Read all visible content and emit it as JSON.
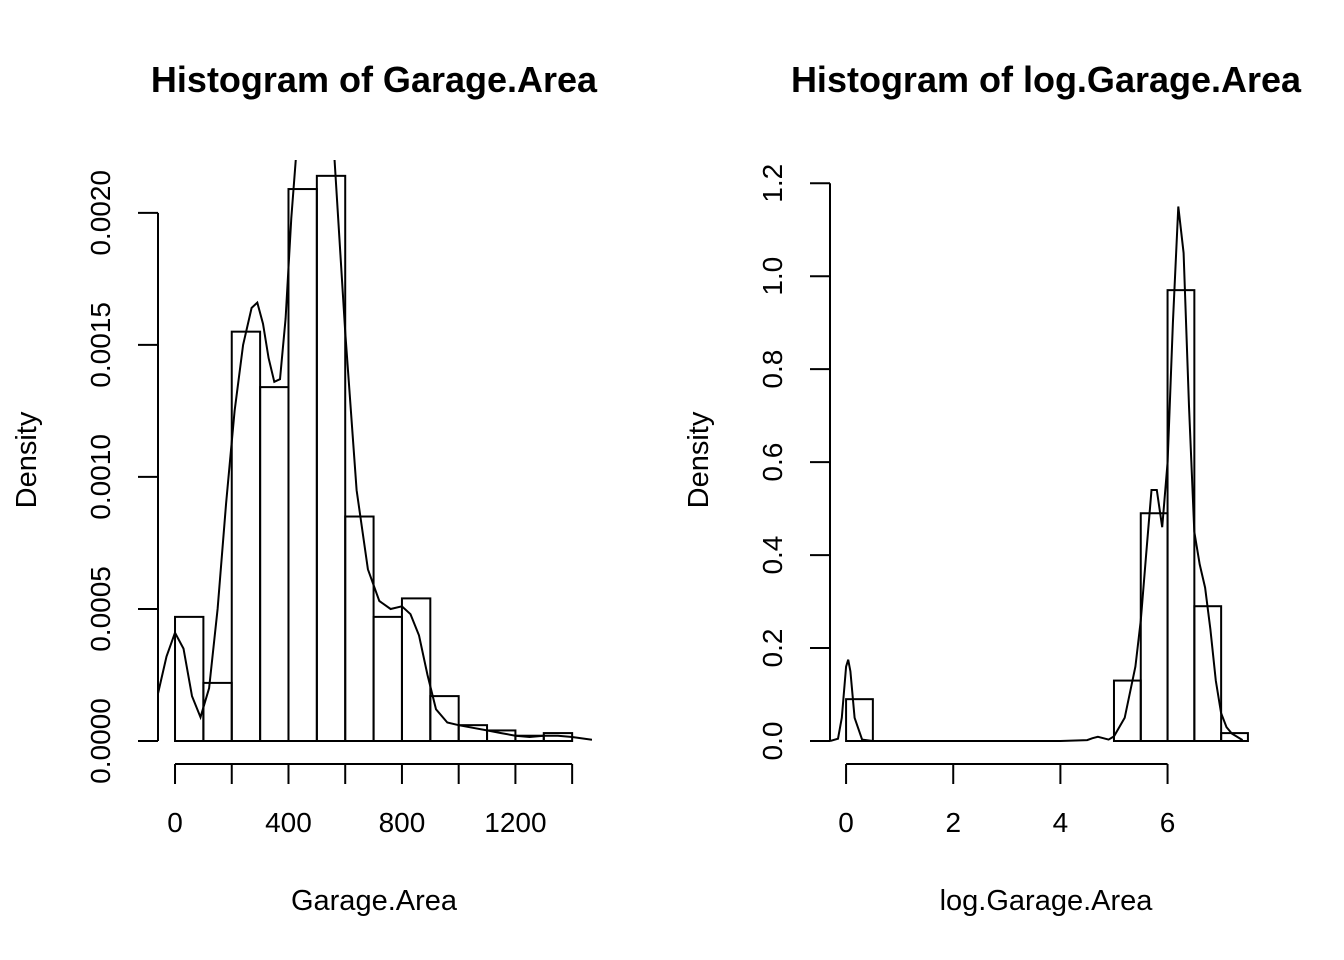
{
  "chart_data": [
    {
      "type": "bar",
      "title": "Histogram of Garage.Area",
      "xlabel": "Garage.Area",
      "ylabel": "Density",
      "xlim": [
        -60,
        1470
      ],
      "ylim": [
        0,
        0.0022
      ],
      "x_ticks": [
        0,
        200,
        400,
        600,
        800,
        1000,
        1200,
        1400
      ],
      "x_tick_labels": [
        "0",
        "",
        "400",
        "",
        "800",
        "",
        "1200",
        ""
      ],
      "y_ticks": [
        0,
        0.0005,
        0.001,
        0.0015,
        0.002
      ],
      "y_tick_labels": [
        "0.0000",
        "0.0005",
        "0.0010",
        "0.0015",
        "0.0020"
      ],
      "bins": [
        {
          "from": 0,
          "to": 100,
          "density": 0.00047
        },
        {
          "from": 100,
          "to": 200,
          "density": 0.00022
        },
        {
          "from": 200,
          "to": 300,
          "density": 0.00155
        },
        {
          "from": 300,
          "to": 400,
          "density": 0.00134
        },
        {
          "from": 400,
          "to": 500,
          "density": 0.00209
        },
        {
          "from": 500,
          "to": 600,
          "density": 0.00214
        },
        {
          "from": 600,
          "to": 700,
          "density": 0.00085
        },
        {
          "from": 700,
          "to": 800,
          "density": 0.00047
        },
        {
          "from": 800,
          "to": 900,
          "density": 0.00054
        },
        {
          "from": 900,
          "to": 1000,
          "density": 0.00017
        },
        {
          "from": 1000,
          "to": 1100,
          "density": 6e-05
        },
        {
          "from": 1100,
          "to": 1200,
          "density": 4e-05
        },
        {
          "from": 1200,
          "to": 1300,
          "density": 2e-05
        },
        {
          "from": 1300,
          "to": 1400,
          "density": 3e-05
        }
      ],
      "density_curve": {
        "x": [
          -60,
          -30,
          0,
          30,
          60,
          90,
          120,
          150,
          180,
          210,
          240,
          270,
          290,
          310,
          330,
          350,
          370,
          390,
          410,
          440,
          470,
          500,
          530,
          560,
          600,
          640,
          680,
          720,
          760,
          800,
          830,
          860,
          890,
          920,
          960,
          1000,
          1050,
          1100,
          1150,
          1200,
          1250,
          1300,
          1350,
          1400,
          1470
        ],
        "y": [
          0.00018,
          0.00032,
          0.00041,
          0.00035,
          0.00017,
          9e-05,
          0.0002,
          0.0005,
          0.0009,
          0.00125,
          0.0015,
          0.00164,
          0.00166,
          0.00158,
          0.00145,
          0.00136,
          0.00137,
          0.0016,
          0.00198,
          0.0024,
          0.0024,
          0.0024,
          0.0024,
          0.00224,
          0.00155,
          0.00095,
          0.00065,
          0.00053,
          0.0005,
          0.00051,
          0.00048,
          0.0004,
          0.00025,
          0.00012,
          7e-05,
          6e-05,
          5e-05,
          4e-05,
          3e-05,
          2e-05,
          1.5e-05,
          2e-05,
          2e-05,
          1.5e-05,
          5e-06
        ]
      }
    },
    {
      "type": "bar",
      "title": "Histogram of log.Garage.Area",
      "xlabel": "log.Garage.Area",
      "ylabel": "Density",
      "xlim": [
        -0.3,
        7.8
      ],
      "ylim": [
        0,
        1.25
      ],
      "x_ticks": [
        0,
        2,
        4,
        6
      ],
      "x_tick_labels": [
        "0",
        "2",
        "4",
        "6"
      ],
      "y_ticks": [
        0,
        0.2,
        0.4,
        0.6,
        0.8,
        1.0,
        1.2
      ],
      "y_tick_labels": [
        "0.0",
        "0.2",
        "0.4",
        "0.6",
        "0.8",
        "1.0",
        "1.2"
      ],
      "bins": [
        {
          "from": 0,
          "to": 0.5,
          "density": 0.09
        },
        {
          "from": 0.5,
          "to": 5.0,
          "density": 0
        },
        {
          "from": 5.0,
          "to": 5.5,
          "density": 0.13
        },
        {
          "from": 5.5,
          "to": 6.0,
          "density": 0.49
        },
        {
          "from": 6.0,
          "to": 6.5,
          "density": 0.97
        },
        {
          "from": 6.5,
          "to": 7.0,
          "density": 0.29
        },
        {
          "from": 7.0,
          "to": 7.5,
          "density": 0.017
        }
      ],
      "density_curve": {
        "x": [
          -0.3,
          -0.15,
          -0.08,
          0.0,
          0.04,
          0.08,
          0.16,
          0.3,
          0.5,
          1.0,
          2.0,
          3.0,
          4.0,
          4.5,
          4.6,
          4.7,
          4.8,
          4.9,
          5.0,
          5.2,
          5.4,
          5.5,
          5.6,
          5.7,
          5.8,
          5.9,
          6.0,
          6.1,
          6.2,
          6.3,
          6.4,
          6.5,
          6.6,
          6.7,
          6.8,
          6.9,
          7.0,
          7.1,
          7.2,
          7.4
        ],
        "y": [
          0,
          0.005,
          0.05,
          0.16,
          0.175,
          0.15,
          0.05,
          0.003,
          0,
          0,
          0,
          0,
          0,
          0.002,
          0.006,
          0.009,
          0.006,
          0.003,
          0.01,
          0.05,
          0.16,
          0.26,
          0.4,
          0.54,
          0.54,
          0.46,
          0.6,
          0.9,
          1.15,
          1.05,
          0.72,
          0.45,
          0.38,
          0.33,
          0.24,
          0.13,
          0.06,
          0.03,
          0.016,
          0.002
        ]
      }
    }
  ]
}
